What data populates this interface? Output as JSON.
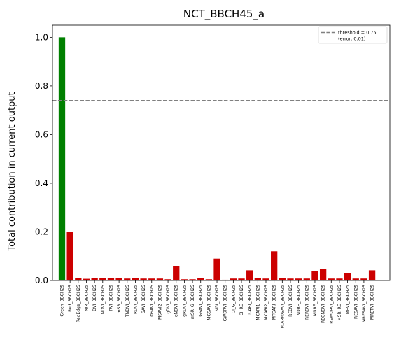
{
  "chart_data": {
    "type": "bar",
    "title": "NCT_BBCH45_a",
    "xlabel": "",
    "ylabel": "Total contribution in current output",
    "ylim": [
      0,
      1.05
    ],
    "yticks": [
      "0.0",
      "0.2",
      "0.4",
      "0.6",
      "0.8",
      "1.0"
    ],
    "grid": false,
    "legend_position": "top-right",
    "threshold": {
      "value": 0.74,
      "label_line1": "threshold = 0.75",
      "label_line2": "(error: 0.01)",
      "color": "#808080"
    },
    "colors": {
      "selected": "#008000",
      "other": "#cc0000"
    },
    "categories": [
      "Green_BBCH25",
      "Red_BBCH25",
      "RedEdge_BBCH25",
      "NIR_BBCH25",
      "DVI_BBCH25",
      "NDVI_BBCH25",
      "RVI_BBCH25",
      "mSR_BBCH25",
      "TNDVI_BBCH25",
      "RDVI_BBCH25",
      "SAVI_BBCH25",
      "OSAVI_BBCH25",
      "MSAVI2_BBCH25",
      "gDVI_BBCH25",
      "gNDVI_BBCH25",
      "gRDVI_BBCH25",
      "mSR_G_BBCH25",
      "GSAVI_BBCH25",
      "MGSAVI_BBCH25",
      "NGI_BBCH25",
      "GWDRVI_BBCH25",
      "CI_G_BBCH25",
      "CI_RE_BBCH25",
      "TCARI_BBCH25",
      "MCARI1_BBCH25",
      "MCARI2_BBCH25",
      "MTCARI_BBCH25",
      "TCARIOSAVI_BBCH25",
      "REDVI_BBCH25",
      "NDRE_BBCH25",
      "RERDVI_BBCH25",
      "MNRE_BBCH25",
      "REGNDVI_BBCH25",
      "REWDRVI_BBCH25",
      "MSR_RE_BBCH25",
      "MEVI_BBCH25",
      "RESAVI_BBCH25",
      "MRESAVI_BBCH25",
      "MRETVI_BBCH25"
    ],
    "values": [
      1.0,
      0.2,
      0.01,
      0.007,
      0.011,
      0.011,
      0.011,
      0.011,
      0.008,
      0.011,
      0.008,
      0.008,
      0.008,
      0.005,
      0.06,
      0.005,
      0.005,
      0.011,
      0.005,
      0.09,
      0.003,
      0.008,
      0.008,
      0.042,
      0.011,
      0.008,
      0.12,
      0.011,
      0.008,
      0.008,
      0.008,
      0.04,
      0.048,
      0.008,
      0.008,
      0.03,
      0.008,
      0.008,
      0.042
    ],
    "highlighted_index": 0
  }
}
